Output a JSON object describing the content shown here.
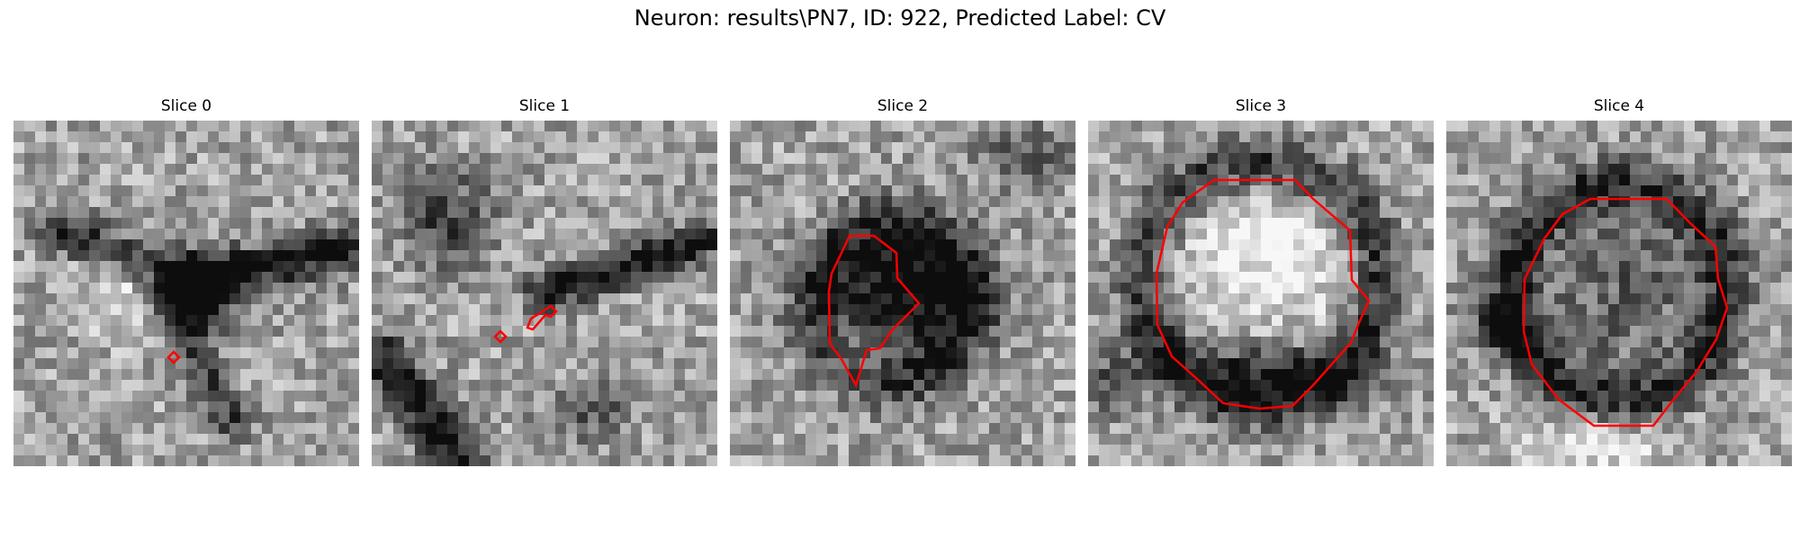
{
  "figure": {
    "title": "Neuron: results\\PN7, ID: 922, Predicted Label: CV"
  },
  "slices": [
    {
      "title": "Slice 0",
      "icon": "grayscale-microscopy-slice-with-tiny-red-contour"
    },
    {
      "title": "Slice 1",
      "icon": "grayscale-microscopy-slice-with-small-red-contour"
    },
    {
      "title": "Slice 2",
      "icon": "grayscale-microscopy-slice-with-red-irregular-contour"
    },
    {
      "title": "Slice 3",
      "icon": "grayscale-microscopy-slice-with-red-round-contour"
    },
    {
      "title": "Slice 4",
      "icon": "grayscale-microscopy-slice-with-red-round-contour"
    }
  ],
  "colors": {
    "contour": "#ff0000",
    "background": "#ffffff"
  }
}
